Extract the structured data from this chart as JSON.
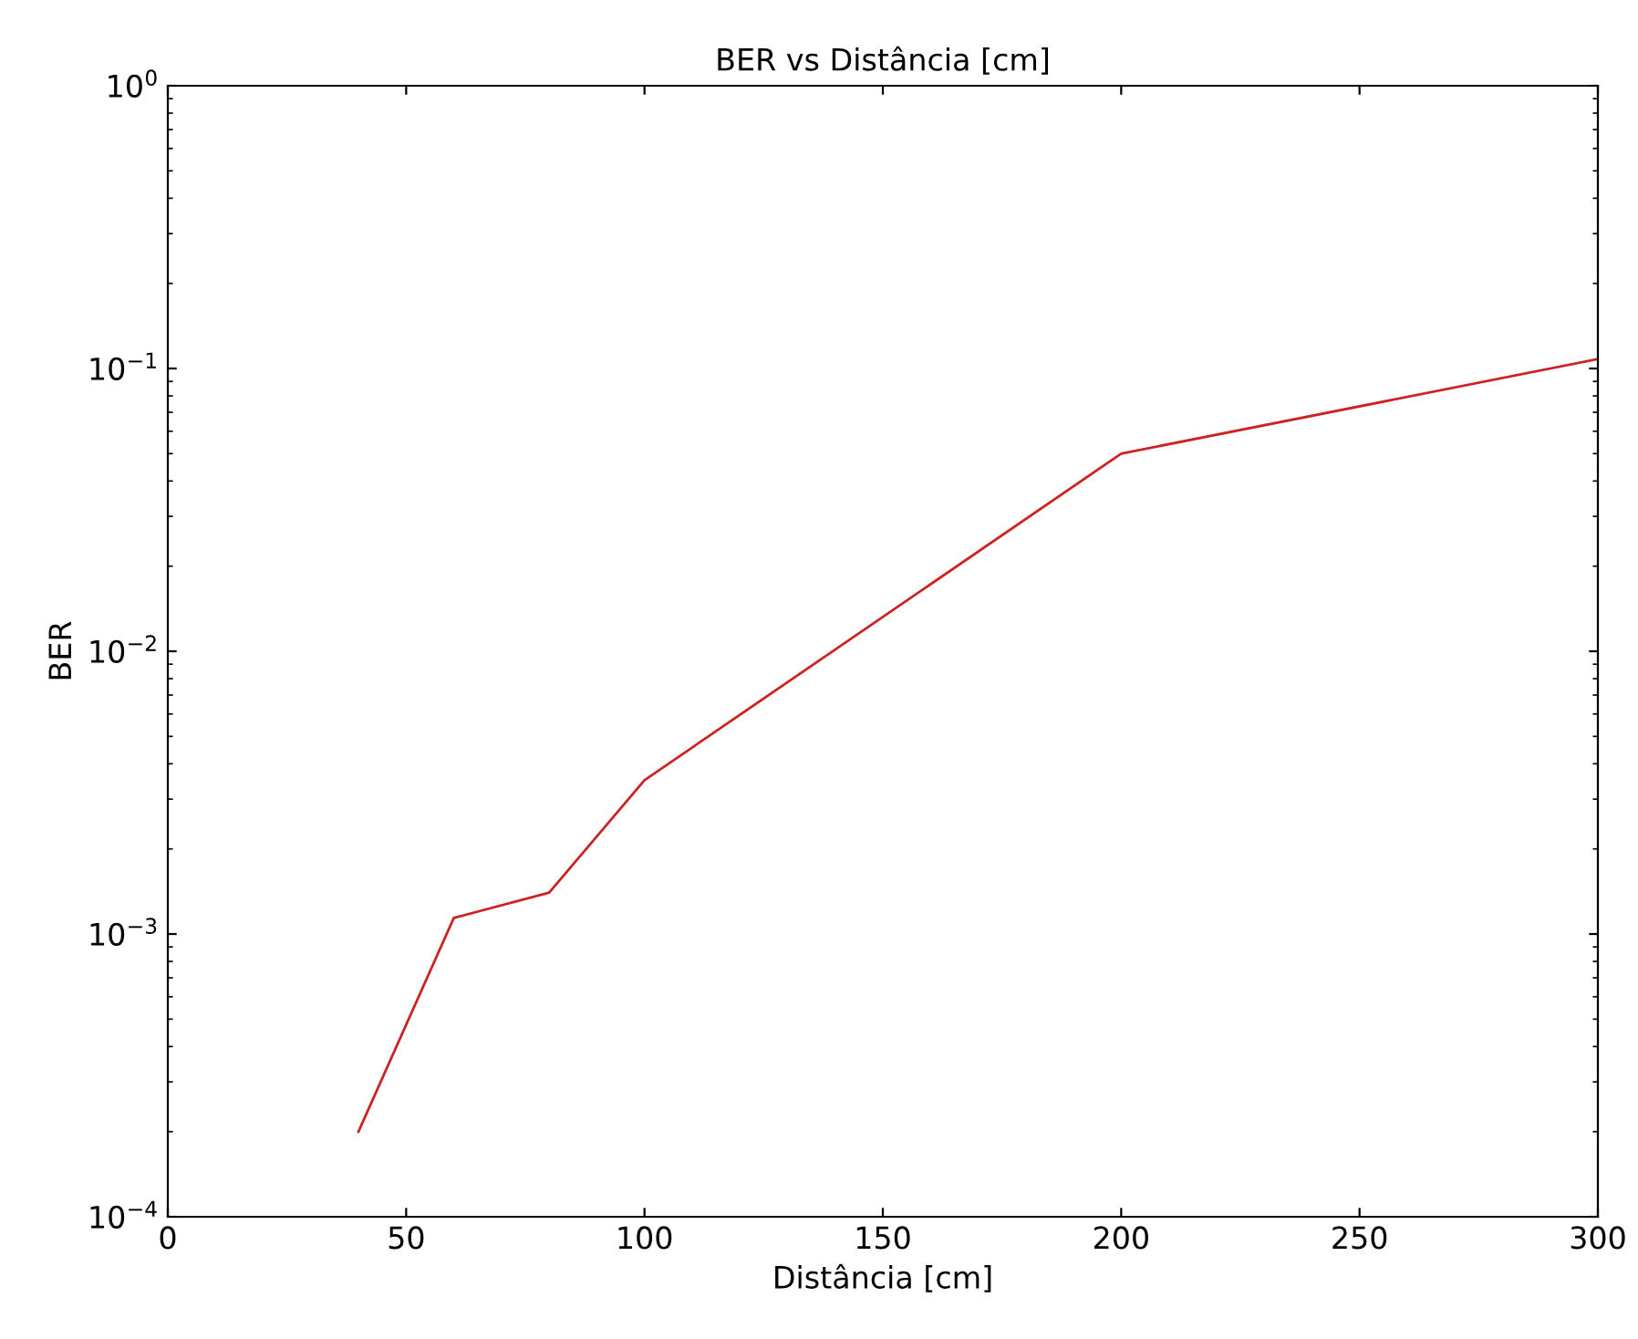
{
  "chart_data": {
    "type": "line",
    "title": "BER vs Distância [cm]",
    "xlabel": "Distância [cm]",
    "ylabel": "BER",
    "x": [
      40,
      60,
      80,
      100,
      200,
      300
    ],
    "series": [
      {
        "color": "#cc2222",
        "values": [
          0.0002,
          0.00114,
          0.0014,
          0.0035,
          0.05,
          0.108
        ]
      }
    ],
    "log": "y",
    "xlim": [
      0,
      300
    ],
    "xticks": [
      0,
      50,
      100,
      150,
      200,
      250,
      300
    ],
    "ylim": [
      0.0001,
      1
    ],
    "yticks": [
      {
        "value": 0.0001,
        "label": "10$^{−4}$"
      },
      {
        "value": 0.001,
        "label": "10$^{−3}$"
      },
      {
        "value": 0.01,
        "label": "10$^{−2}$"
      },
      {
        "value": 0.1,
        "label": "10$^{−1}$"
      },
      {
        "value": 1,
        "label": "10$^{0}$"
      }
    ],
    "grid": false,
    "legend": false
  }
}
